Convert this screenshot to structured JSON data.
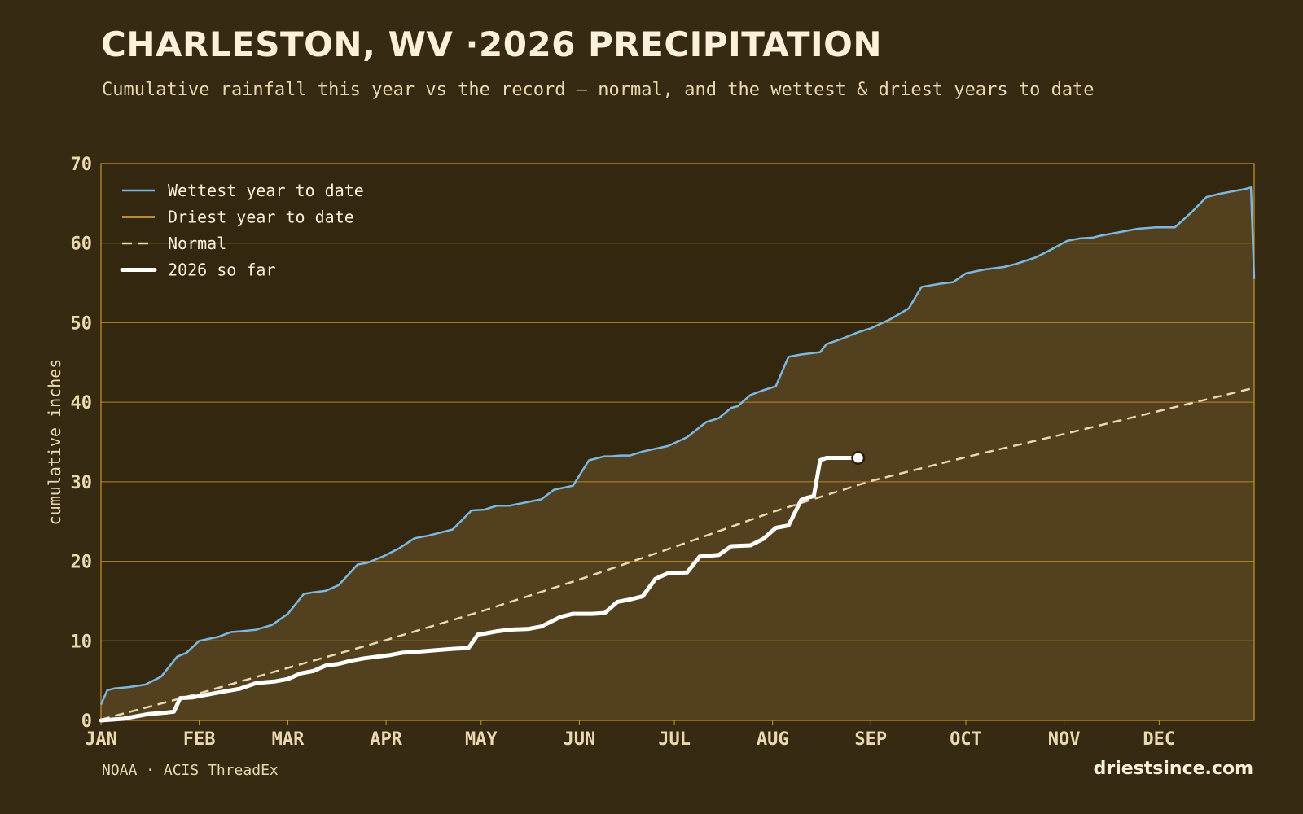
{
  "header": {
    "title": "CHARLESTON, WV ·2026 PRECIPITATION",
    "subtitle": "Cumulative rainfall this year vs the record — normal, and the wettest & driest years to date"
  },
  "footer": {
    "source": "NOAA · ACIS ThreadEx",
    "brand": "driestsince.com"
  },
  "colors": {
    "background": "#372a12",
    "plot_fill": "#52401f",
    "grid": "#c9962e",
    "wettest": "#7cb8e0",
    "driest": "#e0b040",
    "normal": "#ead9b0",
    "current": "#ffffff",
    "text": "#ead9b0"
  },
  "chart_data": {
    "type": "line",
    "xlabel": "",
    "ylabel": "cumulative inches",
    "xlim": [
      1,
      365
    ],
    "ylim": [
      0,
      70
    ],
    "yticks": [
      0,
      10,
      20,
      30,
      40,
      50,
      60,
      70
    ],
    "xticks": [
      {
        "label": "JAN",
        "day": 1
      },
      {
        "label": "FEB",
        "day": 32
      },
      {
        "label": "MAR",
        "day": 60
      },
      {
        "label": "APR",
        "day": 91
      },
      {
        "label": "MAY",
        "day": 121
      },
      {
        "label": "JUN",
        "day": 152
      },
      {
        "label": "JUL",
        "day": 182
      },
      {
        "label": "AUG",
        "day": 213
      },
      {
        "label": "SEP",
        "day": 244
      },
      {
        "label": "OCT",
        "day": 274
      },
      {
        "label": "NOV",
        "day": 305
      },
      {
        "label": "DEC",
        "day": 335
      }
    ],
    "grid": true,
    "legend_position": "top-left",
    "series": [
      {
        "name": "Wettest year to date",
        "key": "wettest",
        "style": "solid",
        "x": [
          1,
          3,
          5,
          10,
          15,
          20,
          25,
          28,
          32,
          38,
          42,
          45,
          50,
          55,
          60,
          65,
          68,
          72,
          76,
          82,
          85,
          90,
          95,
          100,
          104,
          108,
          112,
          118,
          122,
          126,
          130,
          140,
          144,
          150,
          155,
          160,
          162,
          165,
          168,
          172,
          180,
          186,
          192,
          196,
          200,
          202,
          206,
          210,
          214,
          218,
          222,
          226,
          228,
          230,
          235,
          240,
          244,
          250,
          256,
          260,
          266,
          270,
          274,
          280,
          286,
          290,
          296,
          300,
          306,
          310,
          314,
          316,
          320,
          328,
          334,
          340,
          345,
          350,
          354,
          358,
          362,
          364,
          365
        ],
        "y": [
          2.0,
          3.8,
          4.0,
          4.2,
          4.5,
          5.5,
          8.0,
          8.5,
          10.0,
          10.5,
          11.1,
          11.2,
          11.4,
          12.0,
          13.4,
          15.9,
          16.1,
          16.3,
          17.0,
          19.6,
          19.8,
          20.6,
          21.6,
          22.9,
          23.2,
          23.6,
          24.0,
          26.4,
          26.5,
          27.0,
          27.0,
          27.8,
          29.0,
          29.5,
          32.7,
          33.2,
          33.2,
          33.3,
          33.3,
          33.8,
          34.5,
          35.6,
          37.5,
          38.0,
          39.3,
          39.5,
          40.9,
          41.5,
          42.0,
          45.7,
          46.0,
          46.2,
          46.3,
          47.3,
          48.0,
          48.8,
          49.3,
          50.4,
          51.8,
          54.5,
          54.9,
          55.1,
          56.2,
          56.7,
          57.0,
          57.4,
          58.2,
          59.0,
          60.3,
          60.6,
          60.7,
          60.9,
          61.2,
          61.8,
          62.0,
          62.0,
          63.8,
          65.8,
          66.2,
          66.5,
          66.8,
          67.0,
          55.5
        ]
      },
      {
        "name": "Driest year to date",
        "key": "driest",
        "style": "solid",
        "x": [],
        "y": []
      },
      {
        "name": "Normal",
        "key": "normal",
        "style": "dashed",
        "x": [
          1,
          32,
          60,
          91,
          121,
          152,
          182,
          213,
          244,
          274,
          305,
          335,
          364,
          365
        ],
        "y": [
          0.1,
          3.4,
          6.6,
          10.1,
          13.7,
          17.7,
          21.8,
          26.2,
          30.1,
          33.1,
          36.0,
          38.9,
          41.7,
          41.3
        ]
      },
      {
        "name": "2026 so far",
        "key": "current",
        "style": "bold",
        "x": [
          1,
          8,
          12,
          16,
          22,
          24,
          26,
          30,
          34,
          38,
          45,
          50,
          56,
          60,
          64,
          68,
          72,
          76,
          80,
          84,
          88,
          92,
          96,
          100,
          106,
          112,
          117,
          120,
          122,
          126,
          130,
          136,
          140,
          146,
          150,
          156,
          160,
          164,
          168,
          172,
          176,
          180,
          186,
          190,
          196,
          200,
          206,
          210,
          214,
          218,
          222,
          224,
          226,
          228,
          230,
          232,
          234,
          236,
          238,
          240
        ],
        "y": [
          0.0,
          0.2,
          0.5,
          0.8,
          1.0,
          1.1,
          2.8,
          2.9,
          3.2,
          3.5,
          4.0,
          4.7,
          4.9,
          5.2,
          5.9,
          6.2,
          6.9,
          7.1,
          7.5,
          7.8,
          8.0,
          8.2,
          8.5,
          8.6,
          8.8,
          9.0,
          9.1,
          10.8,
          10.9,
          11.2,
          11.4,
          11.5,
          11.8,
          13.0,
          13.4,
          13.4,
          13.5,
          14.9,
          15.2,
          15.6,
          17.8,
          18.5,
          18.6,
          20.6,
          20.8,
          21.9,
          22.0,
          22.8,
          24.2,
          24.5,
          27.7,
          28.0,
          28.2,
          32.7,
          33.0,
          33.0,
          33.0,
          33.0,
          33.0,
          33.0
        ]
      }
    ]
  }
}
